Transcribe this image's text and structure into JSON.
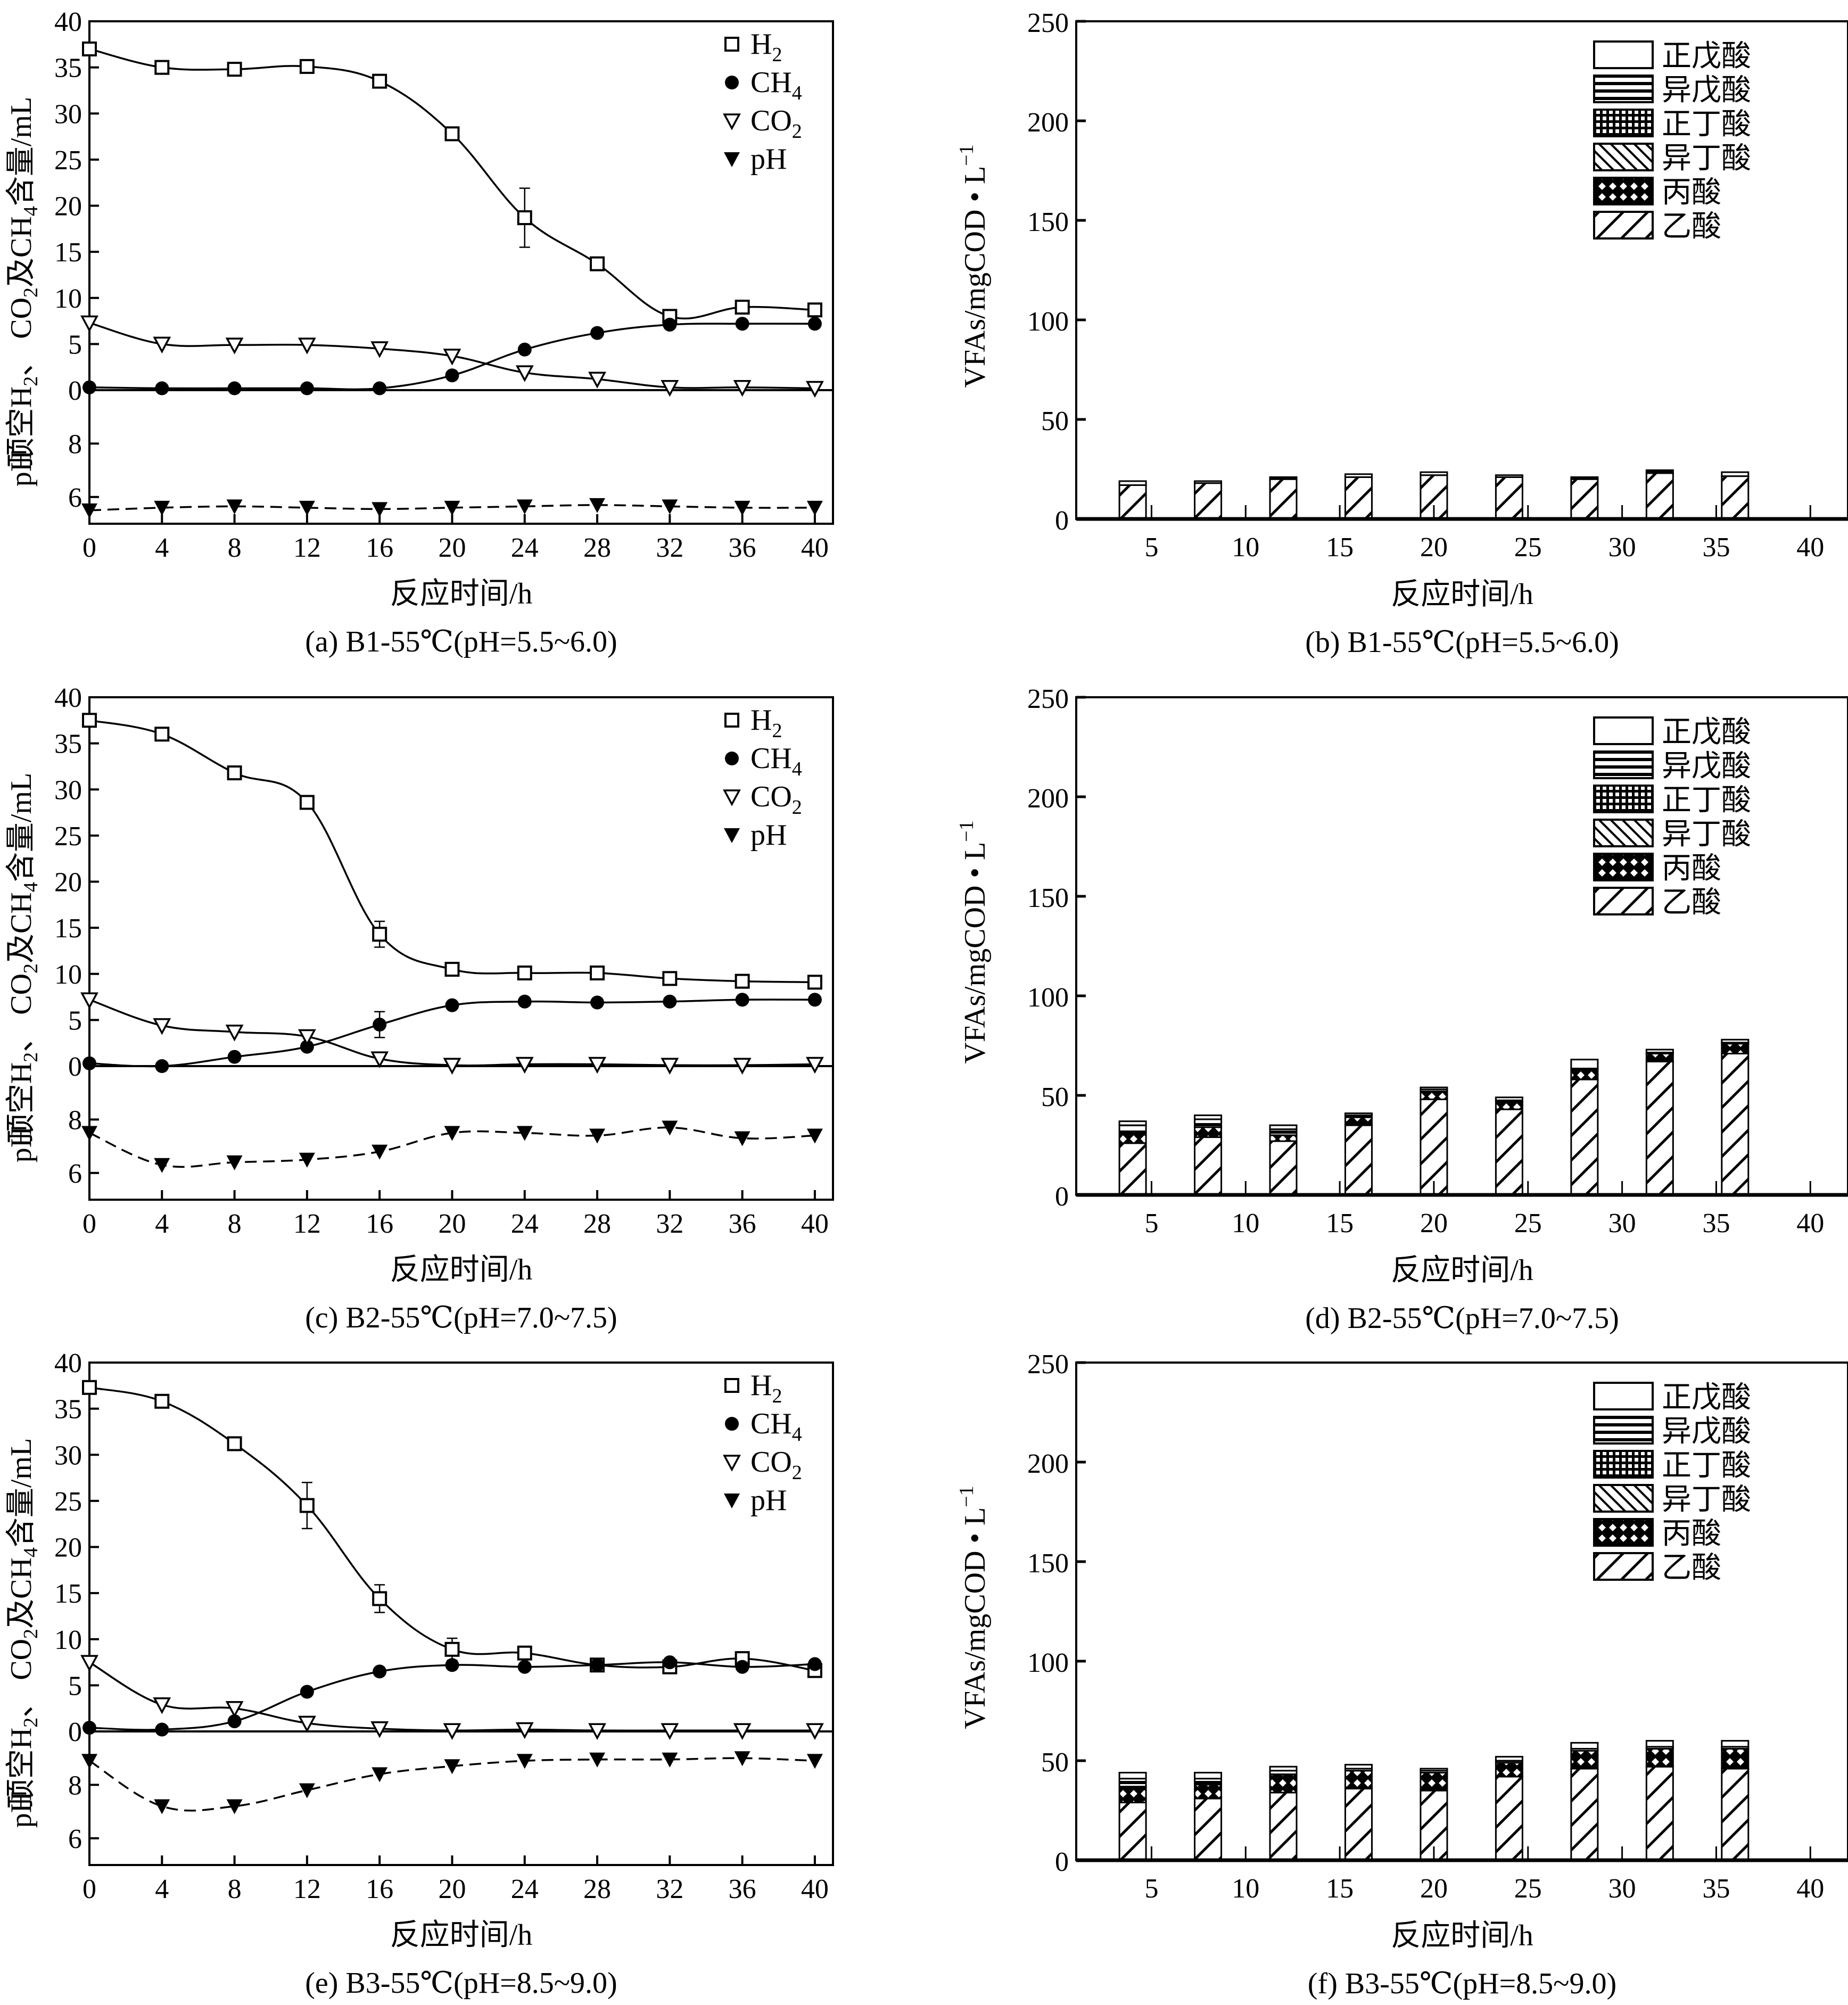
{
  "figure": {
    "panels": [
      "a",
      "b",
      "c",
      "d",
      "e",
      "f"
    ]
  },
  "chart_data": [
    {
      "id": "a",
      "type": "line",
      "caption": "(a) B1-55℃(pH=5.5~6.0)",
      "xlabel": "反应时间/h",
      "ylabel_gas": "顶空H₂、CO₂及CH₄含量/mL",
      "ylabel_ph": "pH",
      "x": [
        0,
        4,
        8,
        12,
        16,
        20,
        24,
        28,
        32,
        36,
        40
      ],
      "xticks": [
        0,
        4,
        8,
        12,
        16,
        20,
        24,
        28,
        32,
        36,
        40
      ],
      "xlim": [
        0,
        41
      ],
      "gas_ylim": [
        0,
        40
      ],
      "gas_yticks": [
        0,
        5,
        10,
        15,
        20,
        25,
        30,
        35,
        40
      ],
      "ph_ylim": [
        5,
        10
      ],
      "ph_yticks": [
        6,
        8
      ],
      "legend": [
        "H2",
        "CH4",
        "CO2",
        "pH"
      ],
      "legend_position": "top-right",
      "series": [
        {
          "name": "H2",
          "marker": "square-open",
          "line": "solid",
          "values": [
            37.0,
            35.0,
            34.8,
            35.1,
            33.5,
            27.8,
            18.7,
            13.7,
            8.0,
            9.0,
            8.7
          ],
          "errors": [
            0,
            0,
            0,
            0,
            0,
            0.6,
            3.2,
            0,
            0,
            0,
            0
          ]
        },
        {
          "name": "CH4",
          "marker": "circle-filled",
          "line": "solid",
          "values": [
            0.3,
            0.2,
            0.2,
            0.2,
            0.2,
            1.6,
            4.4,
            6.2,
            7.1,
            7.2,
            7.2
          ],
          "errors": [
            0,
            0,
            0,
            0,
            0,
            0,
            0,
            0,
            0,
            0,
            0
          ]
        },
        {
          "name": "CO2",
          "marker": "triangle-down-open",
          "line": "solid",
          "values": [
            7.3,
            5.0,
            4.9,
            4.9,
            4.5,
            3.7,
            1.9,
            1.2,
            0.3,
            0.3,
            0.2
          ],
          "errors": [
            0,
            0,
            0,
            0,
            0,
            0,
            0,
            0,
            0,
            0,
            0
          ]
        },
        {
          "name": "pH",
          "marker": "triangle-down-filled",
          "line": "dashed",
          "values": [
            5.5,
            5.6,
            5.65,
            5.6,
            5.55,
            5.6,
            5.65,
            5.7,
            5.65,
            5.6,
            5.6
          ],
          "errors": [
            0,
            0,
            0,
            0,
            0,
            0,
            0,
            0,
            0,
            0,
            0
          ]
        }
      ]
    },
    {
      "id": "b",
      "type": "bar",
      "stacked": true,
      "caption": "(b) B1-55℃(pH=5.5~6.0)",
      "xlabel": "反应时间/h",
      "ylabel": "VFAs/mgCOD • L⁻¹",
      "ylim": [
        0,
        250
      ],
      "yticks": [
        0,
        50,
        100,
        150,
        200,
        250
      ],
      "xlim": [
        1,
        42
      ],
      "xticks": [
        5,
        10,
        15,
        20,
        25,
        30,
        35,
        40
      ],
      "x": [
        4,
        8,
        12,
        16,
        20,
        24,
        28,
        32,
        36
      ],
      "legend_position": "top-right",
      "series": [
        {
          "name": "乙酸",
          "pattern": "diag-up",
          "values": [
            17,
            18,
            20,
            21,
            22,
            21,
            20,
            23,
            21.5
          ]
        },
        {
          "name": "丙酸",
          "pattern": "crosshatch",
          "values": [
            0,
            0,
            0,
            0,
            0,
            0,
            0,
            0,
            0
          ]
        },
        {
          "name": "异丁酸",
          "pattern": "diag-down",
          "values": [
            0,
            0,
            0,
            0,
            0,
            0,
            0,
            0,
            0
          ]
        },
        {
          "name": "正丁酸",
          "pattern": "grid",
          "values": [
            0,
            0,
            0,
            0,
            0,
            0,
            0,
            0,
            0
          ]
        },
        {
          "name": "异戊酸",
          "pattern": "horizontal",
          "values": [
            2,
            1,
            1,
            1.5,
            1.5,
            1,
            1,
            1.5,
            2
          ]
        },
        {
          "name": "正戊酸",
          "pattern": "empty",
          "values": [
            0,
            0,
            0,
            0,
            0,
            0,
            0,
            0,
            0
          ]
        }
      ]
    },
    {
      "id": "c",
      "type": "line",
      "caption": "(c) B2-55℃(pH=7.0~7.5)",
      "xlabel": "反应时间/h",
      "ylabel_gas": "顶空H₂、CO₂及CH₄含量/mL",
      "ylabel_ph": "pH",
      "x": [
        0,
        4,
        8,
        12,
        16,
        20,
        24,
        28,
        32,
        36,
        40
      ],
      "xticks": [
        0,
        4,
        8,
        12,
        16,
        20,
        24,
        28,
        32,
        36,
        40
      ],
      "xlim": [
        0,
        41
      ],
      "gas_ylim": [
        0,
        40
      ],
      "gas_yticks": [
        0,
        5,
        10,
        15,
        20,
        25,
        30,
        35,
        40
      ],
      "ph_ylim": [
        5,
        10
      ],
      "ph_yticks": [
        6,
        8
      ],
      "legend": [
        "H2",
        "CH4",
        "CO2",
        "pH"
      ],
      "legend_position": "top-right",
      "series": [
        {
          "name": "H2",
          "marker": "square-open",
          "line": "solid",
          "values": [
            37.5,
            36.0,
            31.8,
            28.6,
            14.3,
            10.5,
            10.1,
            10.1,
            9.5,
            9.2,
            9.1
          ],
          "errors": [
            0,
            0,
            0,
            0,
            1.4,
            0,
            0,
            0,
            0,
            0,
            0
          ]
        },
        {
          "name": "CH4",
          "marker": "circle-filled",
          "line": "solid",
          "values": [
            0.3,
            0.0,
            1.0,
            2.1,
            4.5,
            6.6,
            7.0,
            6.9,
            7.0,
            7.2,
            7.2
          ],
          "errors": [
            0,
            0,
            0,
            0,
            1.4,
            0,
            0,
            0,
            0,
            0,
            0
          ]
        },
        {
          "name": "CO2",
          "marker": "triangle-down-open",
          "line": "solid",
          "values": [
            7.2,
            4.4,
            3.7,
            3.2,
            0.8,
            0.1,
            0.2,
            0.2,
            0.1,
            0.1,
            0.2
          ],
          "errors": [
            0,
            0,
            0,
            0,
            0,
            0,
            0,
            0,
            0,
            0,
            0
          ]
        },
        {
          "name": "pH",
          "marker": "triangle-down-filled",
          "line": "dashed",
          "values": [
            7.5,
            6.3,
            6.4,
            6.5,
            6.8,
            7.5,
            7.5,
            7.4,
            7.7,
            7.3,
            7.4
          ],
          "errors": [
            0,
            0,
            0,
            0,
            0,
            0,
            0,
            0,
            0,
            0,
            0
          ]
        }
      ]
    },
    {
      "id": "d",
      "type": "bar",
      "stacked": true,
      "caption": "(d) B2-55℃(pH=7.0~7.5)",
      "xlabel": "反应时间/h",
      "ylabel": "VFAs/mgCOD • L⁻¹",
      "ylim": [
        0,
        250
      ],
      "yticks": [
        0,
        50,
        100,
        150,
        200,
        250
      ],
      "xlim": [
        1,
        42
      ],
      "xticks": [
        5,
        10,
        15,
        20,
        25,
        30,
        35,
        40
      ],
      "x": [
        4,
        8,
        12,
        16,
        20,
        24,
        28,
        32,
        36
      ],
      "legend_position": "top-right",
      "series": [
        {
          "name": "乙酸",
          "pattern": "diag-up",
          "values": [
            26,
            29,
            27,
            35,
            48,
            43,
            58,
            67,
            71
          ]
        },
        {
          "name": "丙酸",
          "pattern": "crosshatch",
          "values": [
            5,
            5,
            3,
            4,
            4,
            4,
            5,
            4,
            5
          ]
        },
        {
          "name": "异丁酸",
          "pattern": "diag-down",
          "values": [
            0,
            0,
            0,
            0,
            0,
            0,
            0,
            0,
            0
          ]
        },
        {
          "name": "正丁酸",
          "pattern": "grid",
          "values": [
            0,
            0,
            0,
            0,
            0,
            0,
            0,
            0,
            0
          ]
        },
        {
          "name": "异戊酸",
          "pattern": "horizontal",
          "values": [
            4,
            4,
            3,
            1,
            1,
            0.5,
            0.5,
            0.5,
            0.5
          ]
        },
        {
          "name": "正戊酸",
          "pattern": "empty",
          "values": [
            2,
            2,
            2,
            1,
            1,
            1.5,
            4.5,
            1.5,
            1.5
          ]
        }
      ]
    },
    {
      "id": "e",
      "type": "line",
      "caption": "(e) B3-55℃(pH=8.5~9.0)",
      "xlabel": "反应时间/h",
      "ylabel_gas": "顶空H₂、CO₂及CH₄含量/mL",
      "ylabel_ph": "pH",
      "x": [
        0,
        4,
        8,
        12,
        16,
        20,
        24,
        28,
        32,
        36,
        40
      ],
      "xticks": [
        0,
        4,
        8,
        12,
        16,
        20,
        24,
        28,
        32,
        36,
        40
      ],
      "xlim": [
        0,
        41
      ],
      "gas_ylim": [
        0,
        40
      ],
      "gas_yticks": [
        0,
        5,
        10,
        15,
        20,
        25,
        30,
        35,
        40
      ],
      "ph_ylim": [
        5,
        10
      ],
      "ph_yticks": [
        6,
        8
      ],
      "legend": [
        "H2",
        "CH4",
        "CO2",
        "pH"
      ],
      "legend_position": "top-right",
      "series": [
        {
          "name": "H2",
          "marker": "square-open",
          "line": "solid",
          "values": [
            37.3,
            35.8,
            31.2,
            24.5,
            14.4,
            8.9,
            8.5,
            7.2,
            7.0,
            7.9,
            6.6
          ],
          "errors": [
            0,
            0,
            0,
            2.5,
            1.5,
            1.2,
            0,
            0,
            0,
            0,
            0
          ]
        },
        {
          "name": "CH4",
          "marker": "circle-filled",
          "line": "solid",
          "values": [
            0.4,
            0.2,
            1.1,
            4.3,
            6.5,
            7.2,
            7.0,
            7.2,
            7.5,
            7.0,
            7.3
          ],
          "errors": [
            0,
            0,
            0,
            0,
            0,
            0,
            0,
            0,
            0,
            0,
            0
          ]
        },
        {
          "name": "CO2",
          "marker": "triangle-down-open",
          "line": "solid",
          "values": [
            7.5,
            2.9,
            2.5,
            0.9,
            0.3,
            0.1,
            0.2,
            0.1,
            0.1,
            0.1,
            0.1
          ],
          "errors": [
            0,
            0,
            0,
            0,
            0,
            0,
            0,
            0,
            0,
            0,
            0
          ]
        },
        {
          "name": "pH",
          "marker": "triangle-down-filled",
          "line": "dashed",
          "values": [
            8.9,
            7.2,
            7.2,
            7.8,
            8.4,
            8.7,
            8.9,
            8.95,
            8.95,
            9.0,
            8.9
          ],
          "errors": [
            0,
            0,
            0,
            0,
            0,
            0,
            0,
            0,
            0,
            0,
            0
          ]
        }
      ]
    },
    {
      "id": "f",
      "type": "bar",
      "stacked": true,
      "caption": "(f) B3-55℃(pH=8.5~9.0)",
      "xlabel": "反应时间/h",
      "ylabel": "VFAs/mgCOD • L⁻¹",
      "ylim": [
        0,
        250
      ],
      "yticks": [
        0,
        50,
        100,
        150,
        200,
        250
      ],
      "xlim": [
        1,
        42
      ],
      "xticks": [
        5,
        10,
        15,
        20,
        25,
        30,
        35,
        40
      ],
      "x": [
        4,
        8,
        12,
        16,
        20,
        24,
        28,
        32,
        36
      ],
      "legend_position": "top-right",
      "series": [
        {
          "name": "乙酸",
          "pattern": "diag-up",
          "values": [
            29,
            31,
            34,
            36,
            35,
            42,
            46,
            47,
            46
          ]
        },
        {
          "name": "丙酸",
          "pattern": "crosshatch",
          "values": [
            8,
            7,
            9,
            9,
            9,
            7,
            9,
            9,
            10
          ]
        },
        {
          "name": "异丁酸",
          "pattern": "diag-down",
          "values": [
            0,
            0,
            0,
            0,
            0,
            0,
            0,
            0,
            0
          ]
        },
        {
          "name": "正丁酸",
          "pattern": "grid",
          "values": [
            0,
            0,
            0,
            0,
            0,
            0,
            0,
            0,
            0
          ]
        },
        {
          "name": "异戊酸",
          "pattern": "horizontal",
          "values": [
            4,
            3,
            2,
            1,
            1,
            1,
            1,
            1,
            1
          ]
        },
        {
          "name": "正戊酸",
          "pattern": "empty",
          "values": [
            3,
            3,
            2,
            2,
            1,
            2,
            3,
            3,
            3
          ]
        }
      ]
    }
  ],
  "legend_bars": [
    "正戊酸",
    "异戊酸",
    "正丁酸",
    "异丁酸",
    "丙酸",
    "乙酸"
  ],
  "legend_lines": [
    {
      "label": "H",
      "sub": "2"
    },
    {
      "label": "CH",
      "sub": "4"
    },
    {
      "label": "CO",
      "sub": "2"
    },
    {
      "label": "pH",
      "sub": ""
    }
  ],
  "axis_text": {
    "gas_ylabel_main": "顶空H",
    "gas_ylabel_sub1": "2",
    "gas_ylabel_mid": "、 CO",
    "gas_ylabel_sub2": "2",
    "gas_ylabel_mid2": "及CH",
    "gas_ylabel_sub3": "4",
    "gas_ylabel_end": "含量/mL",
    "ph_ylabel": "pH",
    "bar_ylabel": "VFAs/mgCOD • L",
    "bar_ylabel_sup": "−1"
  }
}
